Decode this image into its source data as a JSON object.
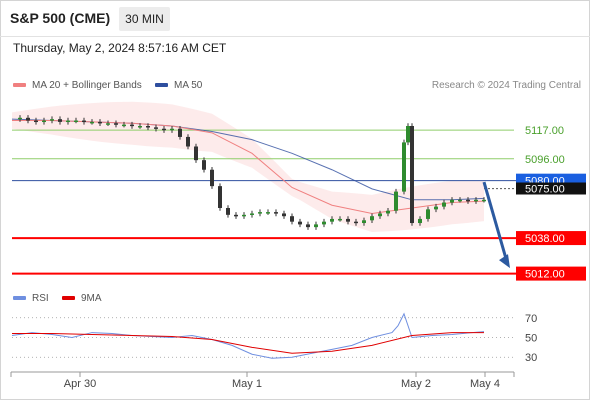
{
  "header": {
    "title": "S&P 500 (CME)",
    "interval": "30 MIN"
  },
  "datetime": "Thursday, May 2, 2024 8:57:16 AM CET",
  "copyright": "Research © 2024 Trading Central",
  "colors": {
    "ma20": "#f08080",
    "ma50": "#2f4f9f",
    "candle": "#2e8b2e",
    "bollinger": "#fbdada",
    "support": "#ff0000",
    "resistance": "#8fce6a",
    "price": "#1a5fe0",
    "rsi": "#6f8fe0",
    "ninema": "#e00000",
    "arrow": "#2c5aa0"
  },
  "chart_data": [
    {
      "type": "line",
      "title": "S&P 500 (CME)",
      "x_tick_labels": [
        "Apr 30",
        "May 1",
        "May 2",
        "May 4"
      ],
      "legend": [
        {
          "name": "MA 20 + Bollinger Bands"
        },
        {
          "name": "MA 50"
        }
      ],
      "legend_position": "top-left",
      "ylim": [
        5000,
        5150
      ],
      "series": [
        {
          "name": "Price",
          "x": [
            0,
            8,
            16,
            24,
            32,
            40,
            48,
            56,
            64,
            72,
            80,
            88,
            96,
            104,
            112,
            120,
            128,
            136,
            144,
            152,
            160,
            168,
            176,
            184,
            192,
            200,
            208,
            216,
            224,
            232,
            240,
            248,
            256,
            264,
            272,
            280,
            288,
            296,
            304,
            312,
            320,
            328,
            336,
            344,
            352,
            360,
            368,
            376,
            384,
            392,
            396,
            400,
            408,
            416,
            424,
            432,
            440,
            448,
            456,
            464,
            472
          ],
          "values": [
            5125,
            5126,
            5124,
            5123,
            5124,
            5125,
            5123,
            5124,
            5124,
            5123,
            5123,
            5122,
            5122,
            5121,
            5121,
            5120,
            5120,
            5119,
            5118,
            5117,
            5118,
            5112,
            5105,
            5095,
            5088,
            5076,
            5060,
            5055,
            5054,
            5055,
            5056,
            5057,
            5057,
            5056,
            5054,
            5050,
            5048,
            5046,
            5048,
            5050,
            5052,
            5052,
            5050,
            5049,
            5051,
            5054,
            5056,
            5058,
            5072,
            5108,
            5120,
            5049,
            5052,
            5059,
            5061,
            5064,
            5066,
            5066,
            5065,
            5066,
            5066
          ]
        },
        {
          "name": "MA 20",
          "x": [
            0,
            40,
            80,
            120,
            160,
            200,
            240,
            280,
            320,
            360,
            400,
            440,
            472
          ],
          "values": [
            5124,
            5124,
            5123,
            5122,
            5120,
            5115,
            5100,
            5075,
            5062,
            5056,
            5060,
            5064,
            5065
          ]
        },
        {
          "name": "MA 50",
          "x": [
            0,
            40,
            80,
            120,
            160,
            200,
            240,
            280,
            320,
            360,
            400,
            440,
            472
          ],
          "values": [
            5125,
            5124,
            5123,
            5122,
            5120,
            5116,
            5110,
            5100,
            5088,
            5074,
            5066,
            5066,
            5067
          ]
        }
      ],
      "levels": [
        {
          "label": "5117.00",
          "value": 5117,
          "kind": "resistance"
        },
        {
          "label": "5096.00",
          "value": 5096,
          "kind": "resistance"
        },
        {
          "label": "5080.00",
          "value": 5080,
          "kind": "last-price"
        },
        {
          "label": "5075.00",
          "value": 5075,
          "kind": "pivot"
        },
        {
          "label": "5038.00",
          "value": 5038,
          "kind": "support"
        },
        {
          "label": "5012.00",
          "value": 5012,
          "kind": "support"
        }
      ]
    },
    {
      "type": "line",
      "legend": [
        {
          "name": "RSI"
        },
        {
          "name": "9MA"
        }
      ],
      "legend_position": "top-left",
      "y_tick_labels": [
        "70",
        "50",
        "30"
      ],
      "ylim": [
        15,
        85
      ],
      "series": [
        {
          "name": "RSI",
          "x": [
            0,
            20,
            40,
            60,
            80,
            100,
            120,
            140,
            160,
            180,
            200,
            220,
            240,
            260,
            280,
            300,
            320,
            340,
            360,
            380,
            386,
            392,
            400,
            420,
            440,
            460,
            472
          ],
          "values": [
            52,
            55,
            53,
            50,
            55,
            54,
            52,
            51,
            50,
            52,
            48,
            42,
            33,
            29,
            30,
            34,
            38,
            42,
            50,
            55,
            62,
            74,
            50,
            52,
            53,
            55,
            56
          ]
        },
        {
          "name": "9MA",
          "x": [
            0,
            40,
            80,
            120,
            160,
            200,
            240,
            280,
            320,
            360,
            400,
            440,
            472
          ],
          "values": [
            54,
            54,
            53,
            52,
            51,
            48,
            40,
            34,
            36,
            42,
            52,
            55,
            55
          ]
        }
      ]
    }
  ]
}
